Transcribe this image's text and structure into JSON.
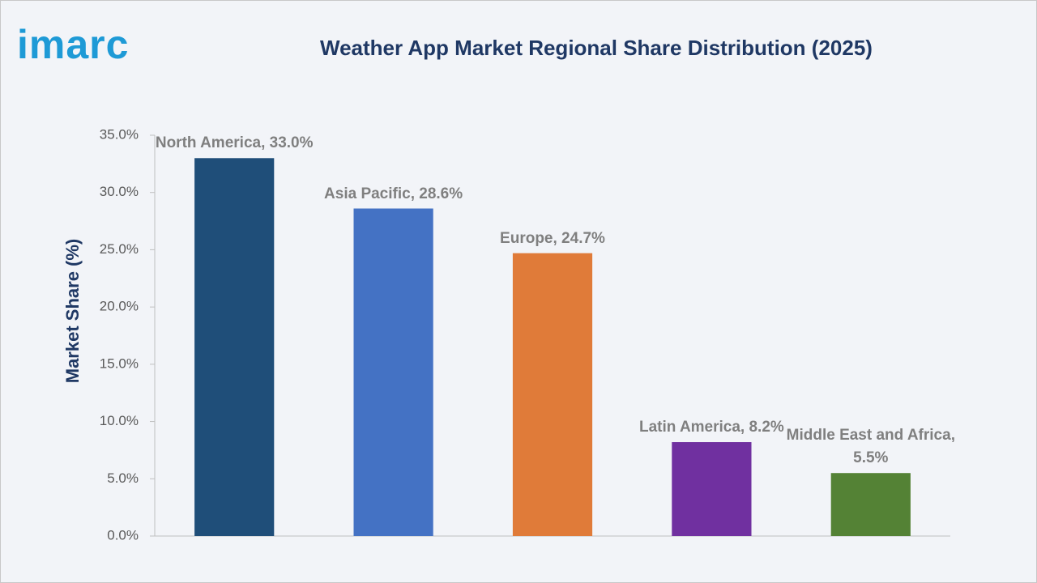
{
  "logo": "imarc",
  "chart_data": {
    "type": "bar",
    "title": "Weather App Market Regional Share Distribution (2025)",
    "y_label": "Market Share (%)",
    "values": [
      33.0,
      28.6,
      24.7,
      8.2,
      5.5
    ],
    "value_labels": [
      "North America, 33.0%",
      "Asia Pacific, 28.6%",
      "Europe, 24.7%",
      "Latin America, 8.2%",
      "Middle East and Africa, 5.5%"
    ],
    "colors": [
      "#1f4e79",
      "#4472c4",
      "#e07b39",
      "#7030a0",
      "#548235"
    ],
    "ylim": [
      0,
      35
    ],
    "yticks": [
      {
        "value": 0,
        "label": "0.0%"
      },
      {
        "value": 5,
        "label": "5.0%"
      },
      {
        "value": 10,
        "label": "10.0%"
      },
      {
        "value": 15,
        "label": "15.0%"
      },
      {
        "value": 20,
        "label": "20.0%"
      },
      {
        "value": 25,
        "label": "25.0%"
      },
      {
        "value": 30,
        "label": "30.0%"
      },
      {
        "value": 35,
        "label": "35.0%"
      }
    ],
    "grid": false
  }
}
